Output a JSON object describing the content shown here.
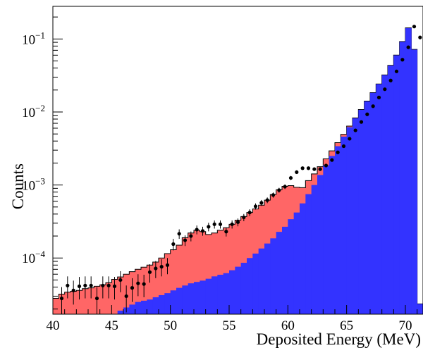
{
  "chart_data": {
    "type": "histogram",
    "title": "",
    "xlabel": "Deposited Energy (MeV)",
    "ylabel": "Counts",
    "xlim": [
      40,
      71.5
    ],
    "ylim": [
      1.7e-05,
      0.28
    ],
    "yscale": "log",
    "x_ticks": [
      40,
      45,
      50,
      55,
      60,
      65,
      70
    ],
    "y_tick_labels": [
      {
        "value": 0.0001,
        "base": "10",
        "exp": "−4"
      },
      {
        "value": 0.001,
        "base": "10",
        "exp": "−3"
      },
      {
        "value": 0.01,
        "base": "10",
        "exp": "−2"
      },
      {
        "value": 0.1,
        "base": "10",
        "exp": "−1"
      }
    ],
    "bin_width": 0.5,
    "colors": {
      "total": "#ff6666",
      "component": "#3333ff",
      "points": "#000000",
      "frame": "#000000"
    },
    "series": [
      {
        "style": "filled-step",
        "color": "#ff6666",
        "x": [
          40.0,
          40.5,
          41.0,
          41.5,
          42.0,
          42.5,
          43.0,
          43.5,
          44.0,
          44.5,
          45.0,
          45.5,
          46.0,
          46.5,
          47.0,
          47.5,
          48.0,
          48.5,
          49.0,
          49.5,
          50.0,
          50.5,
          51.0,
          51.5,
          52.0,
          52.5,
          53.0,
          53.5,
          54.0,
          54.5,
          55.0,
          55.5,
          56.0,
          56.5,
          57.0,
          57.5,
          58.0,
          58.5,
          59.0,
          59.5,
          60.0,
          60.5,
          61.0,
          61.5,
          62.0,
          62.5,
          63.0,
          63.5,
          64.0,
          64.5,
          65.0,
          65.5,
          66.0,
          66.5,
          67.0,
          67.5,
          68.0,
          68.5,
          69.0,
          69.5,
          70.0,
          70.5,
          71.0
        ],
        "values": [
          2.8e-05,
          3.2e-05,
          3.4e-05,
          3.5e-05,
          3.6e-05,
          3.8e-05,
          3.9e-05,
          4.1e-05,
          4.3e-05,
          4.6e-05,
          5.1e-05,
          5.5e-05,
          6e-05,
          6.5e-05,
          7e-05,
          7.5e-05,
          8e-05,
          8.8e-05,
          0.0001,
          0.000115,
          0.00013,
          0.00015,
          0.00019,
          0.00022,
          0.00024,
          0.00023,
          0.00021,
          0.00022,
          0.00024,
          0.00026,
          0.00029,
          0.00033,
          0.00037,
          0.00042,
          0.00047,
          0.00053,
          0.00062,
          0.00074,
          0.00086,
          0.00096,
          0.00098,
          0.00093,
          0.00092,
          0.00115,
          0.00142,
          0.00178,
          0.00228,
          0.00294,
          0.0038,
          0.00493,
          0.0064,
          0.0083,
          0.0108,
          0.0141,
          0.0184,
          0.0242,
          0.0322,
          0.0435,
          0.0601,
          0.0922,
          0.142,
          0.072,
          2.35e-05
        ]
      },
      {
        "style": "filled-step",
        "color": "#3333ff",
        "x": [
          40.0,
          40.5,
          41.0,
          41.5,
          42.0,
          42.5,
          43.0,
          43.5,
          44.0,
          44.5,
          45.0,
          45.5,
          46.0,
          46.5,
          47.0,
          47.5,
          48.0,
          48.5,
          49.0,
          49.5,
          50.0,
          50.5,
          51.0,
          51.5,
          52.0,
          52.5,
          53.0,
          53.5,
          54.0,
          54.5,
          55.0,
          55.5,
          56.0,
          56.5,
          57.0,
          57.5,
          58.0,
          58.5,
          59.0,
          59.5,
          60.0,
          60.5,
          61.0,
          61.5,
          62.0,
          62.5,
          63.0,
          63.5,
          64.0,
          64.5,
          65.0,
          65.5,
          66.0,
          66.5,
          67.0,
          67.5,
          68.0,
          68.5,
          69.0,
          69.5,
          70.0,
          70.5,
          71.0
        ],
        "values": [
          1.2e-05,
          1.2e-05,
          1.2e-05,
          1.2e-05,
          1.2e-05,
          1.2e-05,
          1.3e-05,
          1.4e-05,
          1.6e-05,
          1.7e-05,
          1.7e-05,
          1.9e-05,
          2.1e-05,
          2.3e-05,
          2.5e-05,
          2.6e-05,
          2.7e-05,
          2.9e-05,
          3.1e-05,
          3.3e-05,
          3.6e-05,
          3.9e-05,
          4.2e-05,
          4.5e-05,
          4.7e-05,
          4.9e-05,
          5.2e-05,
          5.6e-05,
          5.9e-05,
          6.2e-05,
          6.8e-05,
          7.6e-05,
          8.6e-05,
          0.0001,
          0.000115,
          0.000135,
          0.000158,
          0.000186,
          0.000228,
          0.000268,
          0.00034,
          0.00042,
          0.00056,
          0.00075,
          0.001,
          0.00137,
          0.00186,
          0.0025,
          0.0034,
          0.0046,
          0.0062,
          0.0082,
          0.0107,
          0.014,
          0.0183,
          0.0241,
          0.032,
          0.0432,
          0.0597,
          0.0915,
          0.141,
          0.0715,
          2.35e-05
        ]
      },
      {
        "style": "points-with-errors",
        "color": "#000000",
        "x": [
          40.75,
          41.25,
          41.75,
          42.25,
          42.75,
          43.25,
          43.75,
          44.25,
          44.75,
          45.25,
          45.75,
          46.25,
          46.75,
          47.25,
          47.75,
          48.25,
          48.75,
          49.25,
          49.75,
          50.25,
          50.75,
          51.25,
          51.75,
          52.25,
          52.75,
          53.25,
          53.75,
          54.25,
          54.75,
          55.25,
          55.75,
          56.25,
          56.75,
          57.25,
          57.75,
          58.25,
          58.75,
          59.25,
          59.75,
          60.25,
          60.75,
          61.25,
          61.75,
          62.25,
          62.75,
          63.25,
          63.75,
          64.25,
          64.75,
          65.25,
          65.75,
          66.25,
          66.75,
          67.25,
          67.75,
          68.25,
          68.75,
          69.25,
          69.75,
          70.25,
          70.75,
          71.25
        ],
        "y": [
          2.8e-05,
          4.2e-05,
          3.6e-05,
          4.1e-05,
          4.2e-05,
          4.2e-05,
          2.8e-05,
          4.2e-05,
          4.2e-05,
          4.1e-05,
          5e-05,
          3e-05,
          3.9e-05,
          4.5e-05,
          4.4e-05,
          6.4e-05,
          7.2e-05,
          7.6e-05,
          8e-05,
          0.000155,
          0.000215,
          0.000175,
          0.0002,
          0.000245,
          0.000235,
          0.000268,
          0.00029,
          0.00029,
          0.00023,
          0.00029,
          0.00031,
          0.00036,
          0.00042,
          0.00051,
          0.00057,
          0.00062,
          0.00073,
          0.00085,
          0.00095,
          0.00125,
          0.0015,
          0.0017,
          0.0017,
          0.00165,
          0.00165,
          0.00185,
          0.0022,
          0.0028,
          0.0034,
          0.0043,
          0.0056,
          0.0073,
          0.0093,
          0.012,
          0.0158,
          0.0205,
          0.027,
          0.036,
          0.052,
          0.077,
          0.148,
          0.105
        ],
        "yerr": [
          1.2e-05,
          1.4e-05,
          1.3e-05,
          1.4e-05,
          1.4e-05,
          1.4e-05,
          1.2e-05,
          1.4e-05,
          1.4e-05,
          1.4e-05,
          1.6e-05,
          1.2e-05,
          1.4e-05,
          1.5e-05,
          1.5e-05,
          1.8e-05,
          1.9e-05,
          2e-05,
          2e-05,
          2.8e-05,
          3.2e-05,
          2.9e-05,
          3.1e-05,
          3.4e-05,
          3.3e-05,
          3.6e-05,
          3.7e-05,
          3.7e-05,
          3.3e-05,
          3.7e-05,
          3.8e-05,
          4.1e-05,
          4.5e-05,
          5e-05,
          5.3e-05,
          5.5e-05,
          6e-05,
          6.5e-05,
          6.9e-05,
          7.9e-05,
          8.7e-05,
          9.2e-05,
          9.2e-05,
          9.1e-05,
          9.1e-05,
          9.6e-05,
          0.000105,
          0.000118,
          0.00013,
          0.000146,
          0.000167,
          0.00019,
          0.000215,
          0.000245,
          0.00028,
          0.00032,
          0.00037,
          0.00042,
          0.0005,
          0.00061,
          0.00085,
          0.00072
        ]
      }
    ]
  }
}
